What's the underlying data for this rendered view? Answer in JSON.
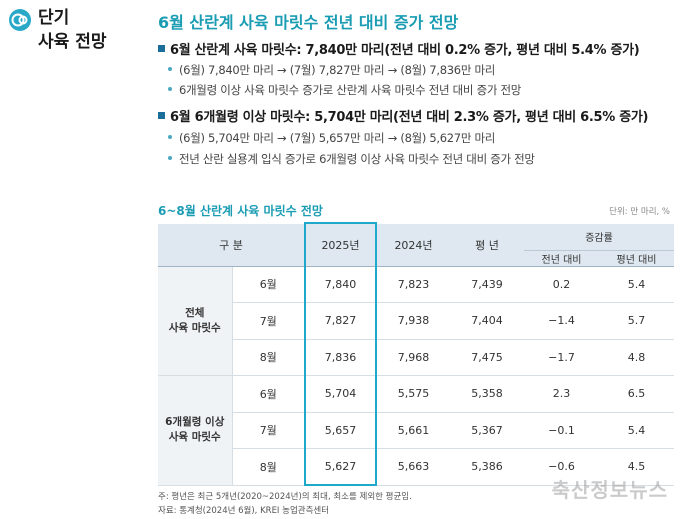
{
  "side": {
    "title_line1": "단기",
    "title_line2": "사육 전망",
    "icon": "circle-logo-icon"
  },
  "main_title": "6월 산란계 사육 마릿수 전년 대비 증가 전망",
  "bullets": [
    {
      "text": "6월 산란계 사육 마릿수: 7,840만 마리(전년 대비 0.2% 증가, 평년 대비 5.4% 증가)"
    },
    {
      "text": "6월 6개월령 이상 마릿수: 5,704만 마리(전년 대비 2.3% 증가, 평년 대비 6.5% 증가)"
    }
  ],
  "subs": [
    "(6월) 7,840만 마리 → (7월) 7,827만 마리 → (8월) 7,836만 마리",
    "6개월령 이상 사육 마릿수 증가로 산란계 사육 마릿수 전년 대비 증가 전망",
    "(6월) 5,704만 마리 → (7월) 5,657만 마리 → (8월) 5,627만 마리",
    "전년 산란 실용계 입식 증가로 6개월령 이상 사육 마릿수 전년 대비 증가 전망"
  ],
  "table": {
    "title": "6~8월 산란계 사육 마릿수 전망",
    "unit": "단위: 만 마리, %",
    "headers": {
      "category": "구  분",
      "y2025": "2025년",
      "y2024": "2024년",
      "avg": "평  년",
      "change": "증감률",
      "yoy": "전년 대비",
      "vs_avg": "평년 대비"
    },
    "groups": [
      {
        "label_line1": "전체",
        "label_line2": "사육 마릿수",
        "rows": [
          {
            "month": "6월",
            "y2025": "7,840",
            "y2024": "7,823",
            "avg": "7,439",
            "yoy": "0.2",
            "vs_avg": "5.4"
          },
          {
            "month": "7월",
            "y2025": "7,827",
            "y2024": "7,938",
            "avg": "7,404",
            "yoy": "−1.4",
            "vs_avg": "5.7"
          },
          {
            "month": "8월",
            "y2025": "7,836",
            "y2024": "7,968",
            "avg": "7,475",
            "yoy": "−1.7",
            "vs_avg": "4.8"
          }
        ]
      },
      {
        "label_line1": "6개월령 이상",
        "label_line2": "사육 마릿수",
        "rows": [
          {
            "month": "6월",
            "y2025": "5,704",
            "y2024": "5,575",
            "avg": "5,358",
            "yoy": "2.3",
            "vs_avg": "6.5"
          },
          {
            "month": "7월",
            "y2025": "5,657",
            "y2024": "5,661",
            "avg": "5,367",
            "yoy": "−0.1",
            "vs_avg": "5.4"
          },
          {
            "month": "8월",
            "y2025": "5,627",
            "y2024": "5,663",
            "avg": "5,386",
            "yoy": "−0.6",
            "vs_avg": "4.5"
          }
        ]
      }
    ]
  },
  "notes": [
    "주: 평년은 최근 5개년(2020~2024년)의 최대, 최소를 제외한 평균임.",
    "자료: 통계청(2024년 6월), KREI 농업관측센터"
  ],
  "watermark": "축산정보뉴스",
  "colors": {
    "accent": "#1a9cb3",
    "highlight_box": "#1fa8c9",
    "header_bg": "#dfe8f0"
  }
}
